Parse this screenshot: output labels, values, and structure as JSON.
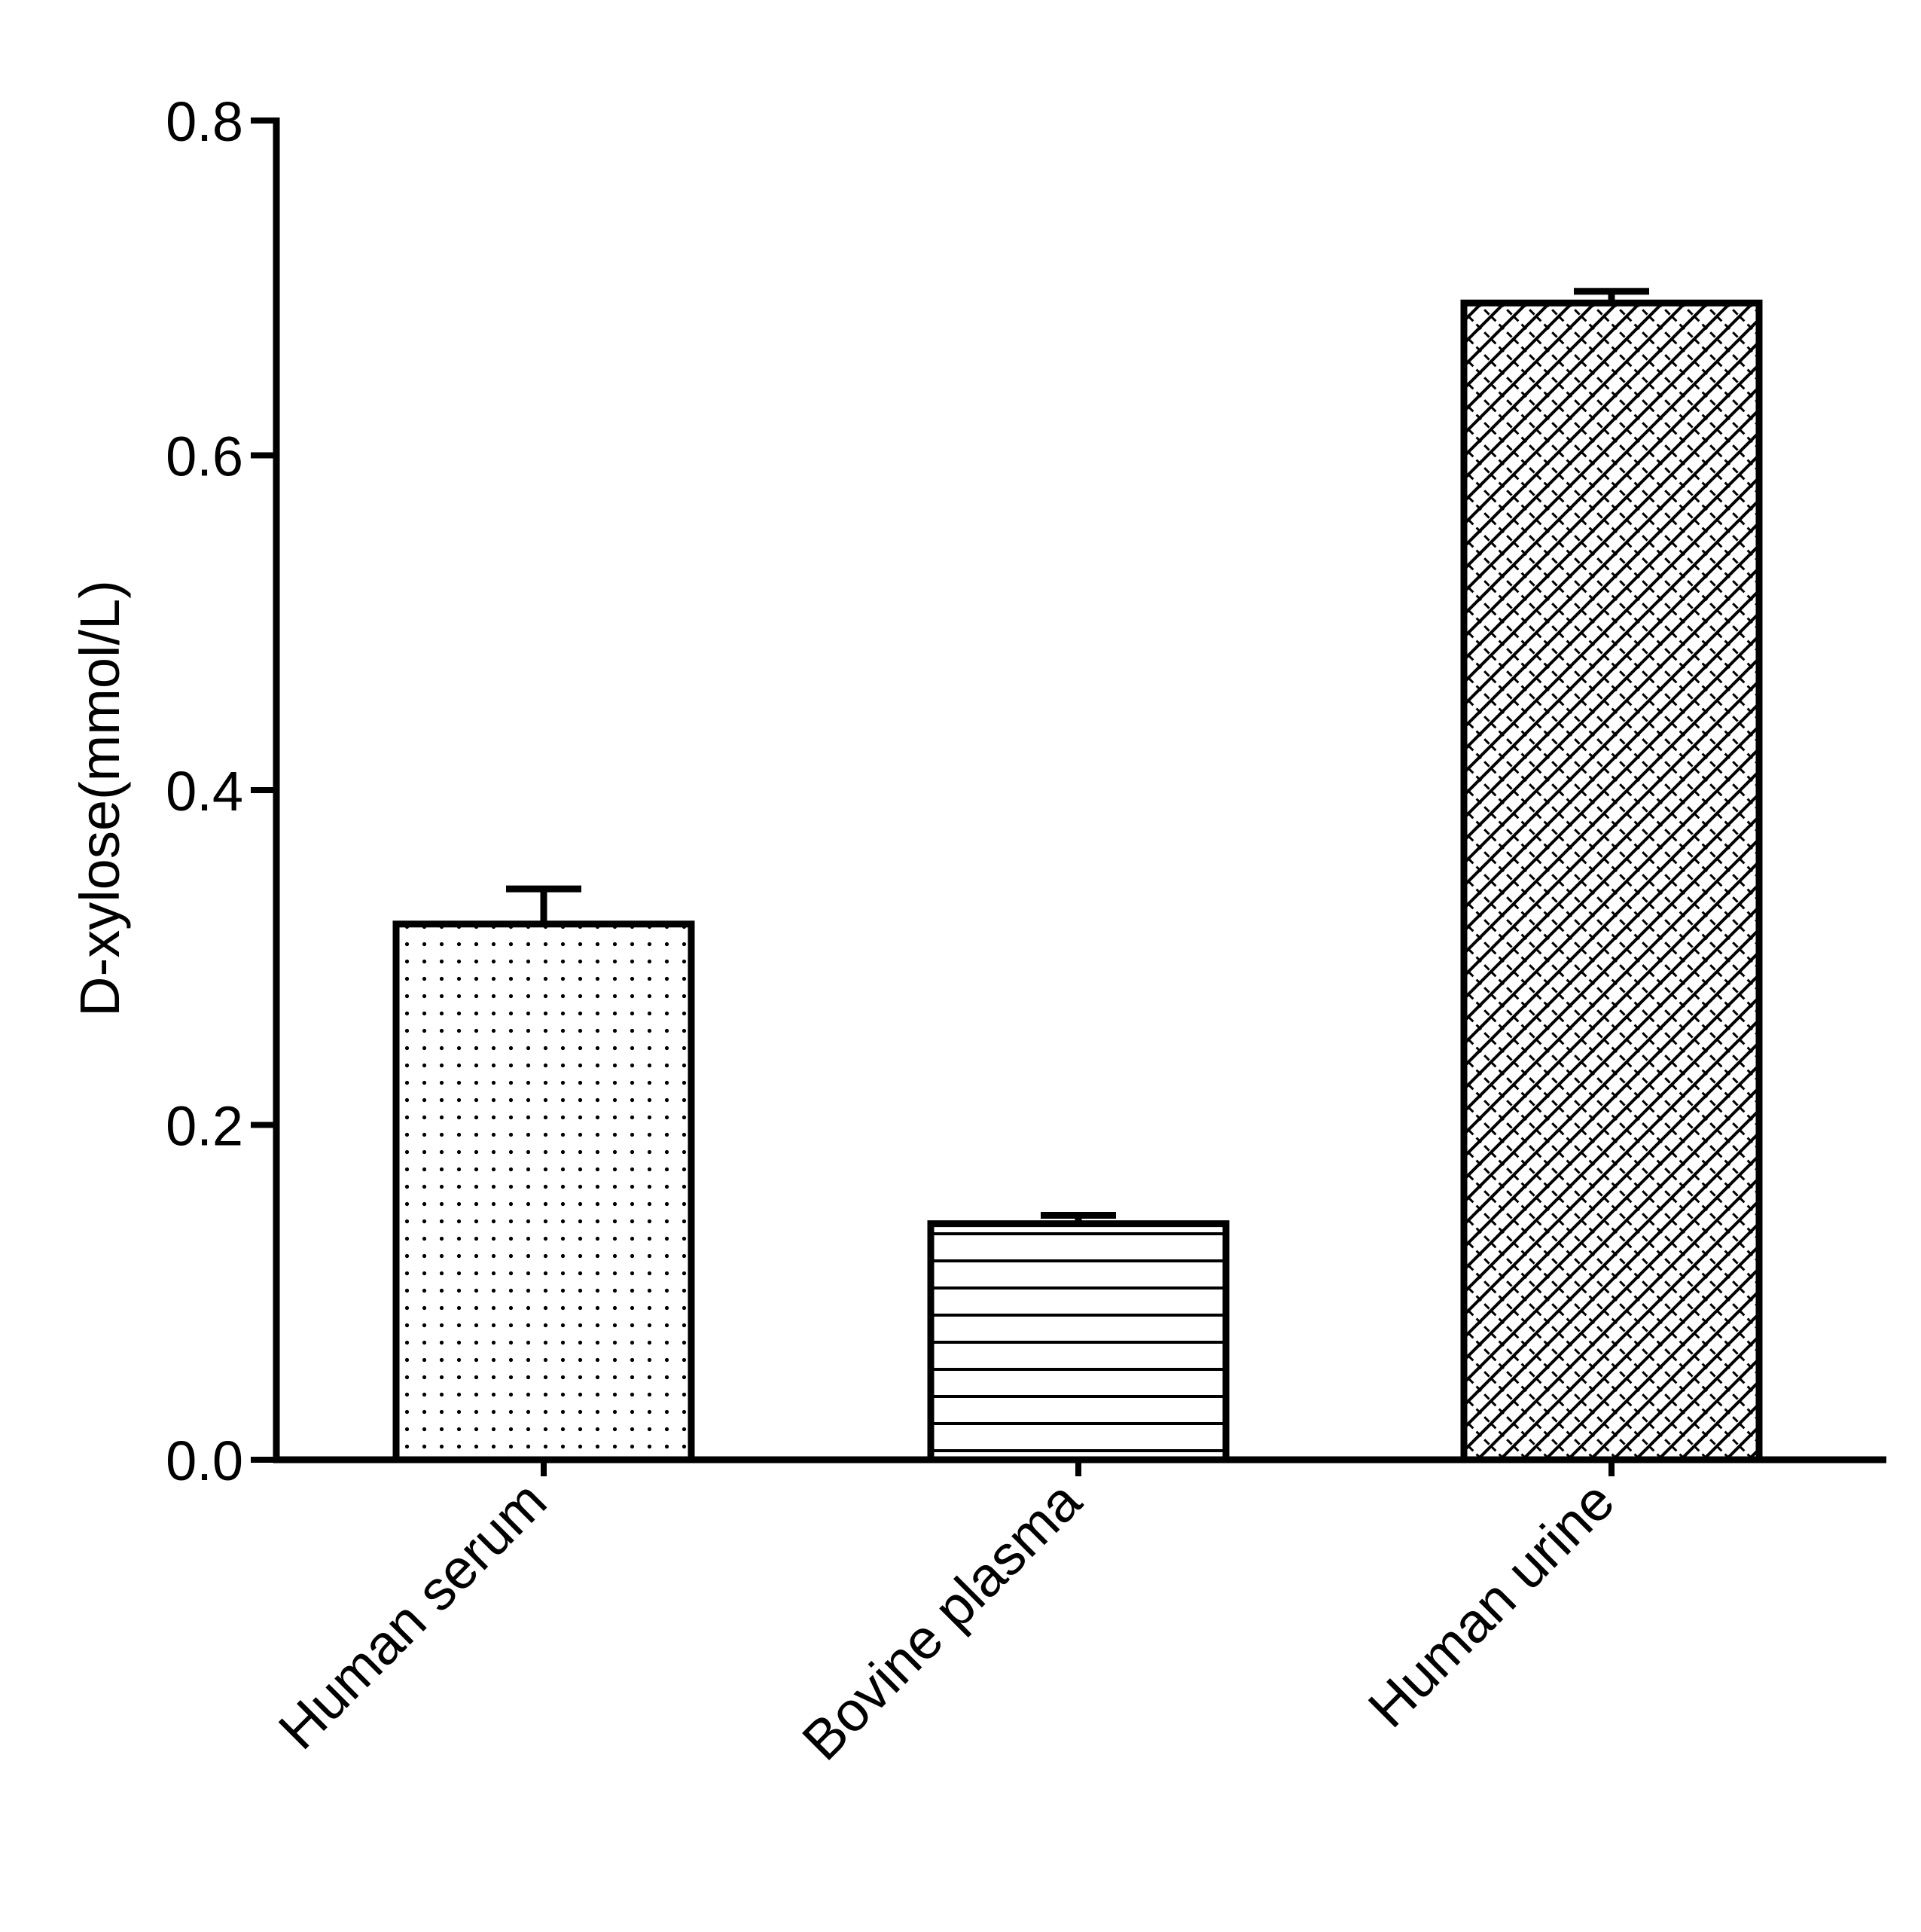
{
  "chart_data": {
    "type": "bar",
    "title": "",
    "xlabel": "",
    "ylabel": "D-xylose(mmol/L)",
    "ylim": [
      0,
      0.8
    ],
    "yticks": [
      "0.0",
      "0.2",
      "0.4",
      "0.6",
      "0.8"
    ],
    "yticks_values": [
      0,
      0.2,
      0.4,
      0.6,
      0.8
    ],
    "categories": [
      "Human serum",
      "Bovine plasma",
      "Human urine"
    ],
    "values": [
      0.32,
      0.141,
      0.691
    ],
    "error": [
      0.021,
      0.005,
      0.007
    ],
    "patterns": [
      "dots",
      "horizontal-lines",
      "crosshatch"
    ],
    "grid": false,
    "legend": "none",
    "colors": {
      "stroke": "#000000",
      "fill": "#ffffff"
    }
  }
}
